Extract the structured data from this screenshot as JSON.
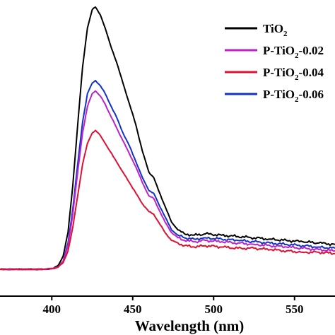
{
  "chart_data": {
    "type": "line",
    "xlabel": "Wavelength (nm)",
    "ylabel": "",
    "title": "",
    "xlim": [
      368,
      575
    ],
    "ylim": [
      0,
      100
    ],
    "x_ticks": [
      400,
      450,
      500,
      550
    ],
    "x_tick_labels": [
      "400",
      "450",
      "500",
      "550"
    ],
    "grid": false,
    "legend_position": "top-right",
    "series": [
      {
        "name": "TiO2",
        "legend_label": {
          "main": "TiO",
          "sub": "2",
          "rest": ""
        },
        "color": "#000000",
        "x": [
          368,
          395,
          401,
          404,
          407,
          410,
          413,
          416,
          419,
          422,
          425,
          427,
          430,
          433,
          436,
          440,
          444,
          448,
          452,
          456,
          460,
          463,
          466,
          470,
          474,
          478,
          482,
          488,
          495,
          505,
          515,
          525,
          535,
          545,
          555,
          565,
          575
        ],
        "y": [
          0,
          0,
          0.3,
          1.5,
          5,
          14,
          32,
          55,
          77,
          92,
          99,
          100,
          97,
          92,
          86,
          79,
          71,
          63,
          55,
          45,
          37,
          35,
          30,
          24,
          18,
          15,
          13.5,
          13,
          13.5,
          13,
          12.5,
          12,
          11.5,
          11,
          10.5,
          10,
          9.5
        ]
      },
      {
        "name": "P-TiO2-0.02",
        "legend_label": {
          "main": "P-TiO",
          "sub": "2",
          "rest": "-0.02"
        },
        "color": "#bb22cc",
        "x": [
          368,
          395,
          401,
          404,
          407,
          410,
          413,
          416,
          419,
          422,
          425,
          427,
          430,
          433,
          436,
          440,
          444,
          448,
          452,
          456,
          460,
          463,
          466,
          470,
          474,
          478,
          482,
          488,
          495,
          505,
          515,
          525,
          535,
          545,
          555,
          565,
          575
        ],
        "y": [
          0,
          0,
          0.3,
          1,
          3,
          9,
          21,
          37,
          52,
          62,
          67,
          68,
          66,
          63,
          59,
          54,
          49,
          44,
          39,
          33,
          28,
          27,
          23,
          18,
          14,
          12,
          11,
          10.5,
          11,
          10.5,
          10,
          9.5,
          9,
          8.5,
          8,
          7.5,
          7
        ]
      },
      {
        "name": "P-TiO2-0.04",
        "legend_label": {
          "main": "P-TiO",
          "sub": "2",
          "rest": "-0.04"
        },
        "color": "#dd1133",
        "x": [
          368,
          395,
          401,
          404,
          407,
          410,
          413,
          416,
          419,
          422,
          425,
          427,
          430,
          433,
          436,
          440,
          444,
          448,
          452,
          456,
          460,
          463,
          466,
          470,
          474,
          478,
          482,
          488,
          495,
          505,
          515,
          525,
          535,
          545,
          555,
          565,
          575
        ],
        "y": [
          0,
          0,
          0.3,
          0.8,
          2.5,
          7,
          16,
          28,
          40,
          48,
          52,
          53,
          51,
          48,
          45,
          41,
          37,
          33,
          29,
          25,
          22,
          21,
          18,
          14,
          11,
          10,
          9,
          8.5,
          9,
          8.5,
          8,
          8,
          7.5,
          7,
          6.5,
          6.5,
          6
        ]
      },
      {
        "name": "P-TiO2-0.06",
        "legend_label": {
          "main": "P-TiO",
          "sub": "2",
          "rest": "-0.06"
        },
        "color": "#1133cc",
        "x": [
          368,
          395,
          401,
          404,
          407,
          410,
          413,
          416,
          419,
          422,
          425,
          427,
          430,
          433,
          436,
          440,
          444,
          448,
          452,
          456,
          460,
          463,
          466,
          470,
          474,
          478,
          482,
          488,
          495,
          505,
          515,
          525,
          535,
          545,
          555,
          565,
          575
        ],
        "y": [
          0,
          0,
          0.3,
          1,
          3,
          10,
          23,
          40,
          56,
          67,
          71,
          72,
          70,
          67,
          63,
          58,
          52,
          47,
          41,
          35,
          30,
          29,
          25,
          20,
          15,
          13,
          12,
          11.5,
          12,
          11.5,
          11,
          10.5,
          10,
          9.5,
          9,
          8.5,
          8
        ]
      }
    ]
  }
}
